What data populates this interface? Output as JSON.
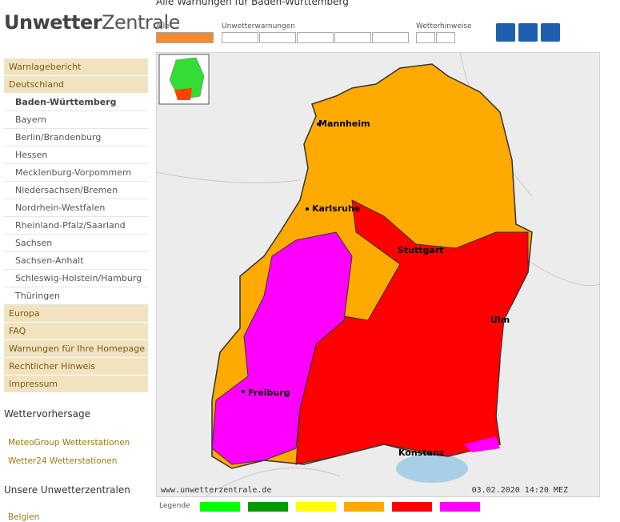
{
  "header": {
    "logo_a": "Unwetter",
    "logo_b": "Zentrale",
    "title": "Alle Warnungen für Baden-Württemberg"
  },
  "filters": {
    "all": "Alle",
    "severe": "Unwetterwarnungen",
    "hints": "Wetterhinweise"
  },
  "nav": {
    "top": [
      "Warnlagebericht",
      "Deutschland"
    ],
    "sub": [
      "Baden-Württemberg",
      "Bayern",
      "Berlin/Brandenburg",
      "Hessen",
      "Mecklenburg-Vorpommern",
      "Niedersachsen/Bremen",
      "Nordrhein-Westfalen",
      "Rheinland-Pfalz/Saarland",
      "Sachsen",
      "Sachsen-Anhalt",
      "Schleswig-Holstein/Hamburg",
      "Thüringen"
    ],
    "bottom": [
      "Europa",
      "FAQ",
      "Warnungen für Ihre Homepage",
      "Rechtlicher Hinweis",
      "Impressum"
    ]
  },
  "forecast": {
    "heading": "Wettervorhersage",
    "links": [
      "MeteoGroup Wetterstationen",
      "Wetter24 Wetterstationen"
    ]
  },
  "centres": {
    "heading": "Unsere Unwetterzentralen",
    "first": "Belgien"
  },
  "map": {
    "cities": [
      "Mannheim",
      "Karlsruhe",
      "Stuttgart",
      "Ulm",
      "Freiburg",
      "Konstanz"
    ],
    "source": "www.unwetterzentrale.de",
    "timestamp": "03.02.2020 14:20 MEZ"
  },
  "legend": {
    "label": "Legende"
  }
}
